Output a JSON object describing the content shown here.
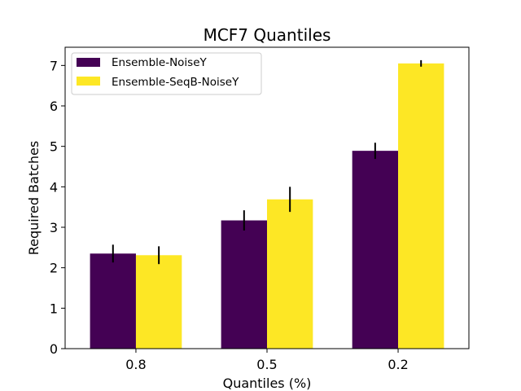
{
  "chart_data": {
    "type": "bar",
    "title": "MCF7 Quantiles",
    "xlabel": "Quantiles (%)",
    "ylabel": "Required Batches",
    "categories": [
      "0.8",
      "0.5",
      "0.2"
    ],
    "ylim": [
      0,
      7.45
    ],
    "yticks": [
      0,
      1,
      2,
      3,
      4,
      5,
      6,
      7
    ],
    "ytick_labels": [
      "0",
      "1",
      "2",
      "3",
      "4",
      "5",
      "6",
      "7"
    ],
    "grid": false,
    "legend_position": "top-left",
    "series": [
      {
        "name": "Ensemble-NoiseY",
        "color": "#440154",
        "values": [
          2.35,
          3.17,
          4.89
        ],
        "errors": [
          0.22,
          0.25,
          0.2
        ]
      },
      {
        "name": "Ensemble-SeqB-NoiseY",
        "color": "#fde725",
        "values": [
          2.31,
          3.69,
          7.05
        ],
        "errors": [
          0.22,
          0.31,
          0.08
        ]
      }
    ]
  }
}
